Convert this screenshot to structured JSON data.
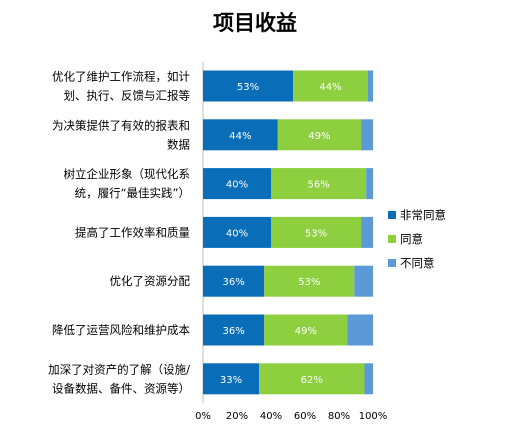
{
  "chart_data": {
    "type": "bar",
    "orientation": "horizontal",
    "stacked": "percent",
    "title": "项目收益",
    "xlim": [
      0,
      100
    ],
    "x_ticks": [
      "0%",
      "20%",
      "40%",
      "60%",
      "80%",
      "100%"
    ],
    "grid": false,
    "legend_position": "right",
    "categories": [
      [
        "优化了维护工作流程，如计",
        "划、执行、反馈与汇报等"
      ],
      [
        "为决策提供了有效的报表和",
        "数据"
      ],
      [
        "树立企业形象（现代化系",
        "统，履行“最佳实践”）"
      ],
      [
        "提高了工作效率和质量"
      ],
      [
        "优化了资源分配"
      ],
      [
        "降低了运营风险和维护成本"
      ],
      [
        "加深了对资产的了解（设施/",
        "设备数据、备件、资源等）"
      ]
    ],
    "series": [
      {
        "name": "非常同意",
        "color": "#0a6db8",
        "values": [
          53,
          44,
          40,
          40,
          36,
          36,
          33
        ],
        "labels": [
          "53%",
          "44%",
          "40%",
          "40%",
          "36%",
          "36%",
          "33%"
        ]
      },
      {
        "name": "同意",
        "color": "#8dcf3e",
        "values": [
          44,
          49,
          56,
          53,
          53,
          49,
          62
        ],
        "labels": [
          "44%",
          "49%",
          "56%",
          "53%",
          "53%",
          "49%",
          "62%"
        ]
      },
      {
        "name": "不同意",
        "color": "#5b9ad6",
        "values": [
          3,
          7,
          4,
          7,
          11,
          15,
          5
        ],
        "labels": [
          "",
          "",
          "",
          "",
          "",
          "",
          ""
        ]
      }
    ]
  }
}
